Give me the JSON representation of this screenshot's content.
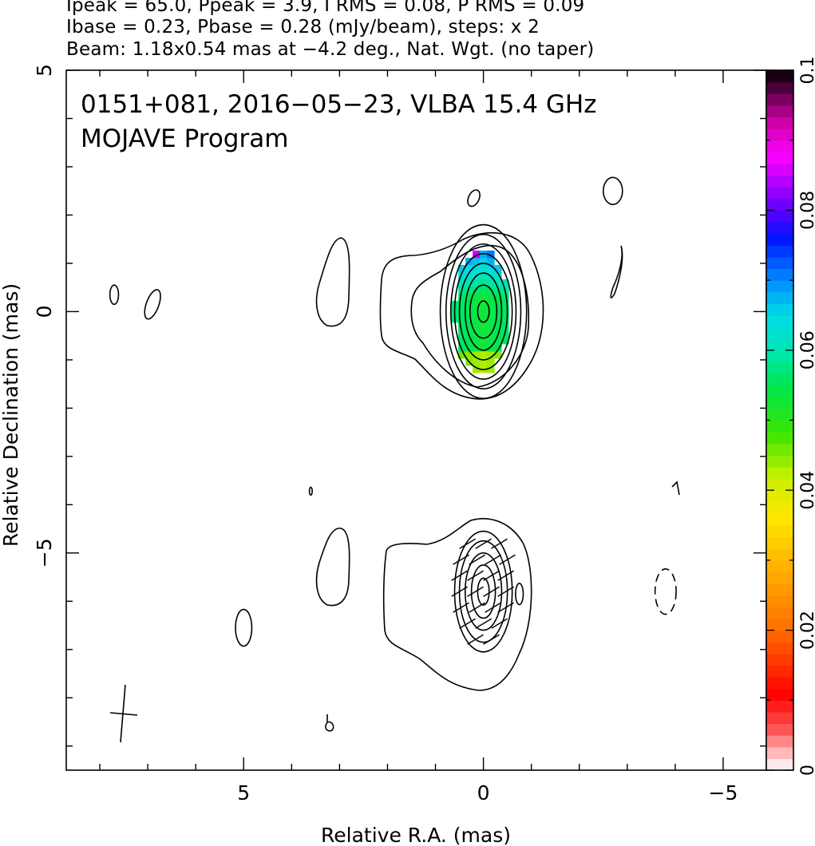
{
  "header": {
    "line1": "Ipeak = 65.0, Ppeak = 3.9, I RMS = 0.08, P RMS = 0.09",
    "line2": "Ibase = 0.23, Pbase = 0.28 (mJy/beam), steps: x 2",
    "line3": "Beam: 1.18x0.54 mas at −4.2 deg., Nat. Wgt. (no taper)"
  },
  "plot": {
    "title_line1": "0151+081, 2016−05−23, VLBA 15.4 GHz",
    "title_line2": "MOJAVE Program"
  },
  "colorbar": {
    "min": 0,
    "max": 0.1,
    "ticks": [
      0,
      0.02,
      0.04,
      0.06,
      0.08,
      0.1
    ],
    "tick_labels": [
      "0",
      "0.02",
      "0.04",
      "0.06",
      "0.08",
      "0.1"
    ]
  },
  "chart_data": {
    "type": "heatmap",
    "title": "0151+081, 2016−05−23, VLBA 15.4 GHz",
    "subtitle": "MOJAVE Program",
    "xlabel": "Relative R.A. (mas)",
    "ylabel": "Relative Declination (mas)",
    "xlim": [
      8.7,
      -5.9
    ],
    "ylim": [
      -9.5,
      5
    ],
    "x_ticks": [
      5,
      0,
      -5
    ],
    "x_tick_labels": [
      "5",
      "0",
      "−5"
    ],
    "y_ticks": [
      5,
      0,
      -5
    ],
    "y_tick_labels": [
      "5",
      "0",
      "−5"
    ],
    "upper_panel": {
      "description_free": true,
      "core_center": [
        0,
        0
      ],
      "contour_semi_axes": [
        [
          0.12,
          0.22
        ],
        [
          0.28,
          0.55
        ],
        [
          0.38,
          0.8
        ],
        [
          0.5,
          1.0
        ],
        [
          0.6,
          1.2
        ],
        [
          0.68,
          1.4
        ],
        [
          0.78,
          1.6
        ],
        [
          0.9,
          1.8
        ]
      ],
      "fractional_polarization_range": [
        0.04,
        0.1
      ]
    },
    "lower_panel": {
      "core_center": [
        0,
        -5.8
      ],
      "contour_semi_axes": [
        [
          0.12,
          0.28
        ],
        [
          0.25,
          0.55
        ],
        [
          0.38,
          0.8
        ],
        [
          0.5,
          1.05
        ],
        [
          0.6,
          1.25
        ]
      ]
    }
  }
}
